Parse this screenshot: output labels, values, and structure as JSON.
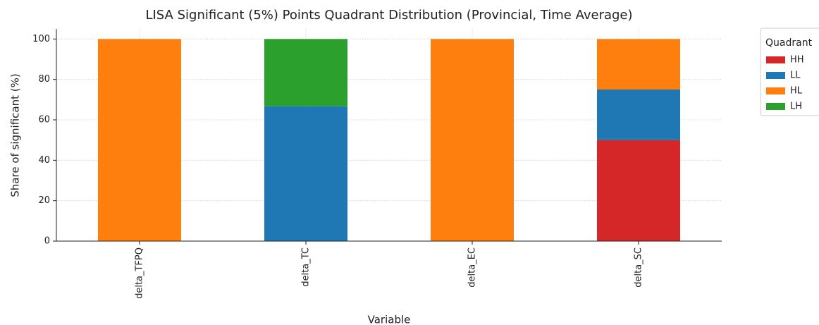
{
  "chart_data": {
    "type": "stacked_bar",
    "title": "LISA Significant (5%) Points Quadrant Distribution (Provincial, Time Average)",
    "x_label": "Variable",
    "y_label": "Share of significant (%)",
    "categories": [
      "delta_TFPQ",
      "delta_TC",
      "delta_EC",
      "delta_SC"
    ],
    "series": [
      {
        "name": "HH",
        "color": "#d62728",
        "values": [
          0,
          0,
          0,
          50
        ]
      },
      {
        "name": "LL",
        "color": "#1f77b4",
        "values": [
          0,
          66.7,
          0,
          25
        ]
      },
      {
        "name": "HL",
        "color": "#ff7f0e",
        "values": [
          100,
          0,
          100,
          25
        ]
      },
      {
        "name": "LH",
        "color": "#2ca02c",
        "values": [
          0,
          33.3,
          0,
          0
        ]
      }
    ],
    "legend_title": "Quadrant",
    "legend_position": "upper right outside",
    "ylim": [
      0,
      105
    ],
    "yticks": [
      0,
      20,
      40,
      60,
      80,
      100
    ],
    "grid": true
  }
}
